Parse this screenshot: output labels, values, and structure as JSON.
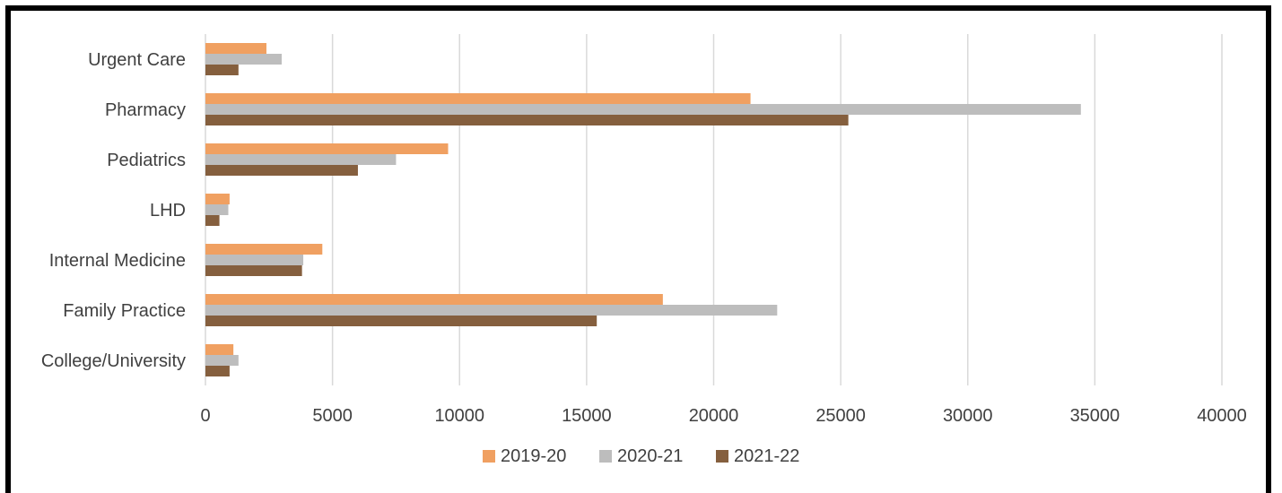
{
  "chart_data": {
    "type": "bar",
    "orientation": "horizontal",
    "categories": [
      "Urgent Care",
      "Pharmacy",
      "Pediatrics",
      "LHD",
      "Internal Medicine",
      "Family Practice",
      "College/University"
    ],
    "series": [
      {
        "name": "2019-20",
        "color": "#F0A061",
        "values": [
          2400,
          21450,
          9550,
          950,
          4600,
          18000,
          1100
        ]
      },
      {
        "name": "2020-21",
        "color": "#BDBDBD",
        "values": [
          3000,
          34450,
          7500,
          900,
          3850,
          22500,
          1300
        ]
      },
      {
        "name": "2021-22",
        "color": "#855F3E",
        "values": [
          1300,
          25300,
          6000,
          550,
          3800,
          15400,
          950
        ]
      }
    ],
    "x_ticks": [
      0,
      5000,
      10000,
      15000,
      20000,
      25000,
      30000,
      35000,
      40000
    ],
    "xlim": [
      0,
      40000
    ],
    "grid": "vertical",
    "legend_position": "bottom",
    "title": "",
    "xlabel": "",
    "ylabel": ""
  }
}
